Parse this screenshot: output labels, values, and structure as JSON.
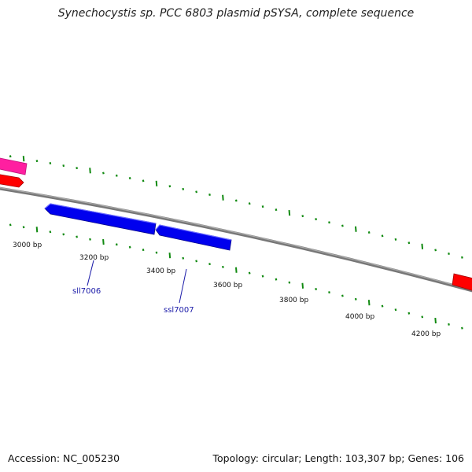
{
  "title": "Synechocystis sp. PCC 6803 plasmid pSYSA, complete sequence",
  "footer": {
    "accession": "Accession: NC_005230",
    "summary": "Topology: circular; Length: 103,307 bp; Genes: 106"
  },
  "colors": {
    "backbone": "#808080",
    "tick": "#118a11",
    "forward_gene": "#0000ee",
    "red_gene": "#ff0000",
    "pink_gene": "#ff1fa0",
    "gene_label": "#1a1aa8"
  },
  "scale_labels": [
    "3000 bp",
    "3200 bp",
    "3400 bp",
    "3600 bp",
    "3800 bp",
    "4000 bp",
    "4200 bp"
  ],
  "genes": [
    {
      "name": "sll7006",
      "label": "sll7006",
      "color": "blue"
    },
    {
      "name": "ssl7007",
      "label": "ssl7007",
      "color": "blue"
    },
    {
      "name": "left-red-gene",
      "label": "",
      "color": "red"
    },
    {
      "name": "left-pink-gene",
      "label": "",
      "color": "pink"
    },
    {
      "name": "right-red-gene",
      "label": "",
      "color": "red"
    }
  ]
}
